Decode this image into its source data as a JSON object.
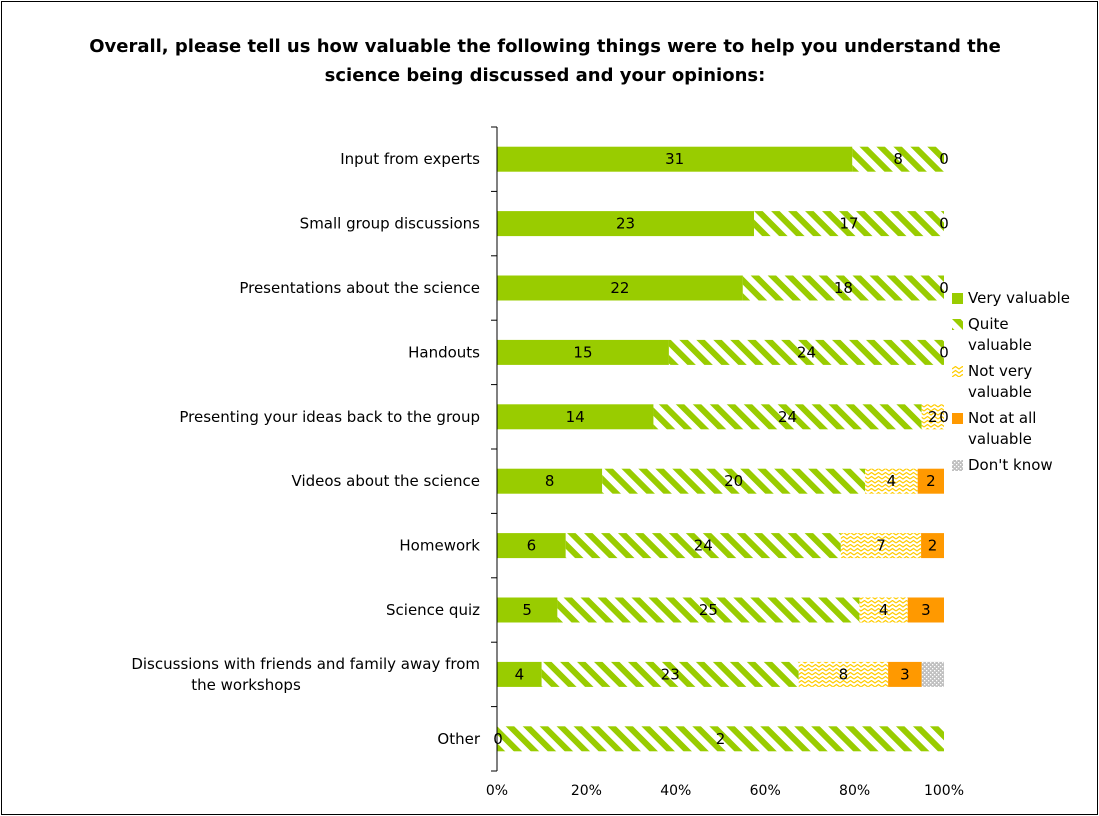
{
  "chart_data": {
    "type": "bar",
    "orientation": "horizontal",
    "stacked": "percent",
    "title": "Overall, please tell us how valuable the following things were to help you understand the science being discussed and your opinions:",
    "categories": [
      "Input from experts",
      "Small group discussions",
      "Presentations about the science",
      "Handouts",
      "Presenting your ideas back to the group",
      "Videos about the science",
      "Homework",
      "Science quiz",
      "Discussions with friends and family away from the workshops",
      "Other"
    ],
    "series": [
      {
        "name": "Very valuable",
        "color": "#99cc00",
        "pattern": "solid",
        "values": [
          31,
          23,
          22,
          15,
          14,
          8,
          6,
          5,
          4,
          0
        ]
      },
      {
        "name": "Quite valuable",
        "color": "#99cc00",
        "pattern": "diagonal-stripes",
        "values": [
          8,
          17,
          18,
          24,
          24,
          20,
          24,
          25,
          23,
          2
        ]
      },
      {
        "name": "Not very valuable",
        "color": "#ffcc00",
        "pattern": "zigzag",
        "values": [
          0,
          0,
          0,
          0,
          2,
          4,
          7,
          4,
          8,
          0
        ]
      },
      {
        "name": "Not at all valuable",
        "color": "#ff9900",
        "pattern": "solid",
        "values": [
          0,
          0,
          0,
          0,
          0,
          2,
          2,
          3,
          3,
          0
        ]
      },
      {
        "name": "Don't know",
        "color": "#c0c0c0",
        "pattern": "dots",
        "values": [
          0,
          0,
          0,
          0,
          0,
          0,
          0,
          0,
          2,
          0
        ]
      }
    ],
    "x_ticks": [
      "0%",
      "20%",
      "40%",
      "60%",
      "80%",
      "100%"
    ],
    "xlim": [
      0,
      100
    ],
    "legend_position": "right",
    "grid": false
  }
}
